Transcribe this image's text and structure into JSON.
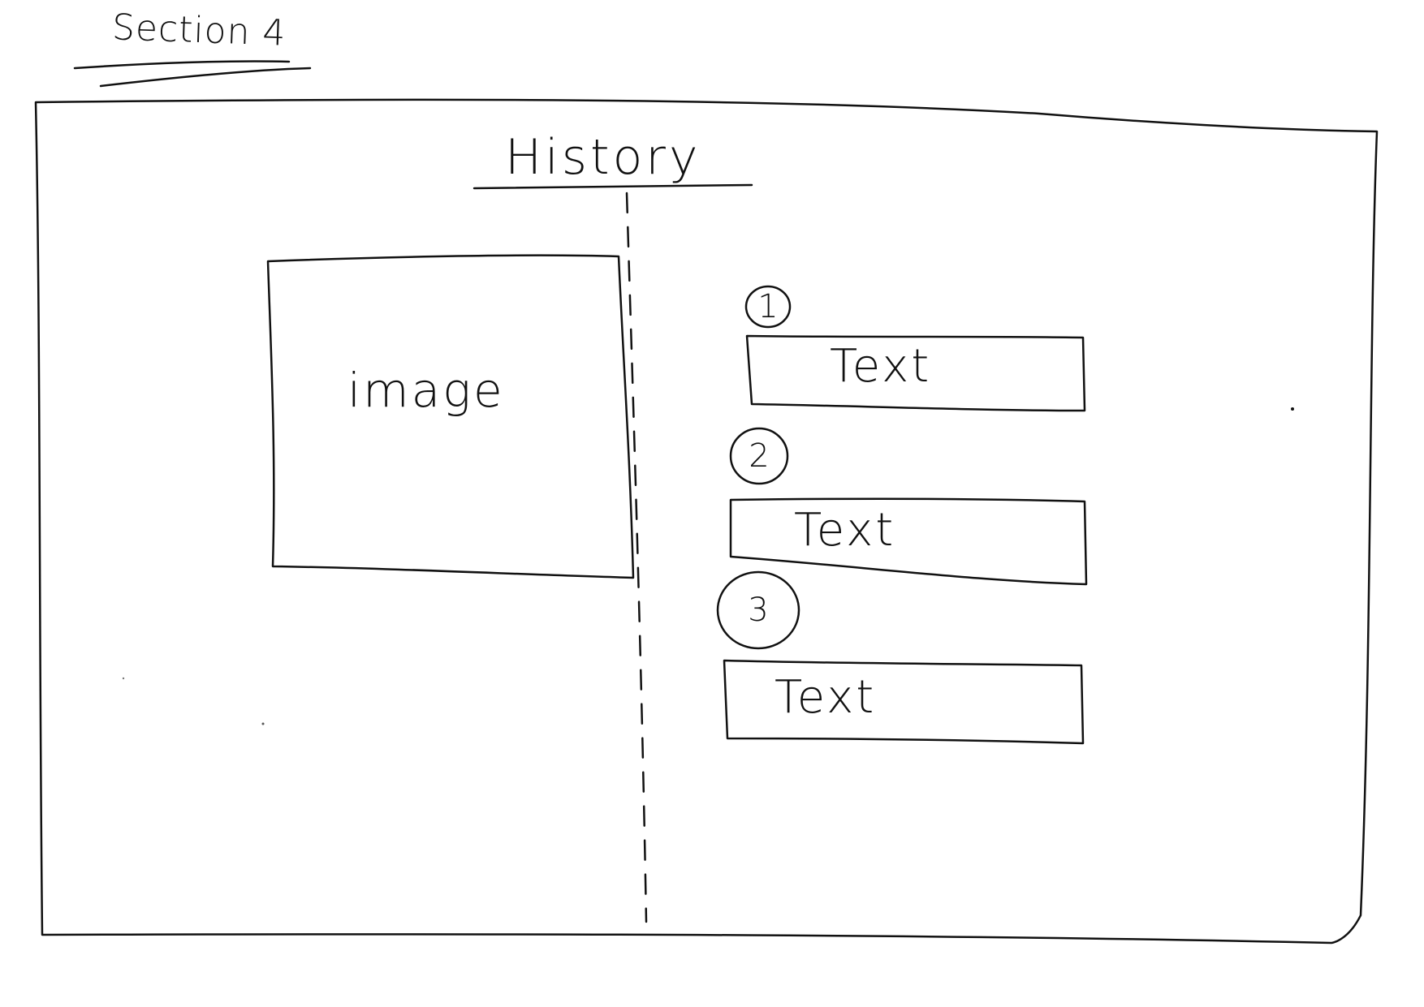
{
  "section_label": "Section 4",
  "page_title": "History",
  "image_placeholder": "image",
  "timeline_items": [
    {
      "number": "1",
      "text": "Text"
    },
    {
      "number": "2",
      "text": "Text"
    },
    {
      "number": "3",
      "text": "Text"
    }
  ],
  "colors": {
    "ink": "#111111",
    "paper": "#ffffff"
  }
}
